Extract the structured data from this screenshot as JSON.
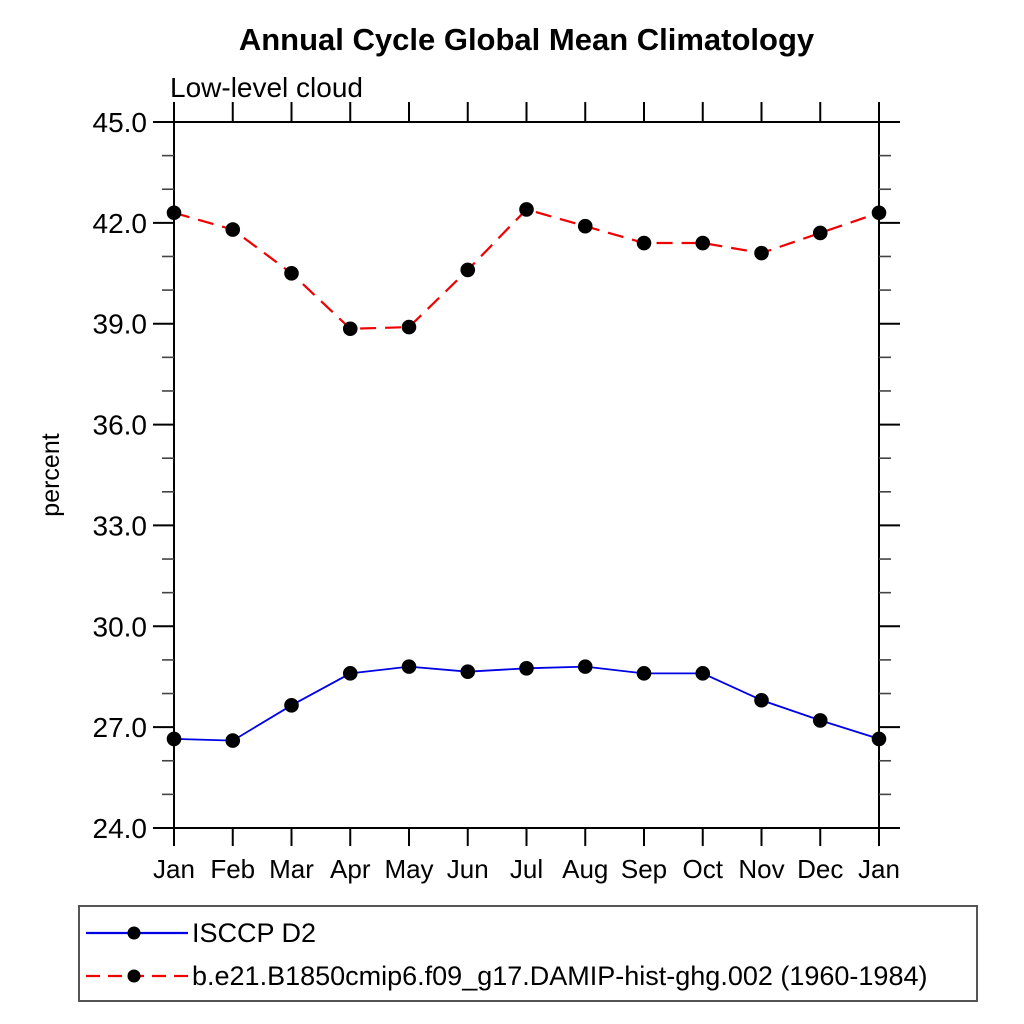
{
  "header": {
    "title": "Annual Cycle Global Mean Climatology"
  },
  "chart_data": {
    "type": "line",
    "title": "Annual Cycle Global Mean Climatology",
    "subtitle": "Low-level cloud",
    "xlabel": "",
    "ylabel": "percent",
    "categories": [
      "Jan",
      "Feb",
      "Mar",
      "Apr",
      "May",
      "Jun",
      "Jul",
      "Aug",
      "Sep",
      "Oct",
      "Nov",
      "Dec",
      "Jan"
    ],
    "ylim": [
      24.0,
      45.0
    ],
    "y_major_tick_step": 3.0,
    "y_minor_tick_step": 1.0,
    "y_tick_labels": [
      "24.0",
      "27.0",
      "30.0",
      "33.0",
      "36.0",
      "39.0",
      "42.0",
      "45.0"
    ],
    "grid": false,
    "legend_position": "bottom",
    "axis_color": "#000000",
    "marker_color": "#000000",
    "series": [
      {
        "name": "ISCCP D2",
        "color": "#0000e6",
        "line_style": "solid",
        "marker": "filled-circle",
        "values": [
          26.65,
          26.6,
          27.65,
          28.6,
          28.8,
          28.65,
          28.75,
          28.8,
          28.6,
          28.6,
          27.8,
          27.2,
          26.65
        ]
      },
      {
        "name": "b.e21.B1850cmip6.f09_g17.DAMIP-hist-ghg.002 (1960-1984)",
        "color": "#f00000",
        "line_style": "dashed",
        "marker": "filled-circle",
        "values": [
          42.3,
          41.8,
          40.5,
          38.85,
          38.9,
          40.6,
          42.4,
          41.9,
          41.4,
          41.4,
          41.1,
          41.7,
          42.3
        ]
      }
    ]
  }
}
